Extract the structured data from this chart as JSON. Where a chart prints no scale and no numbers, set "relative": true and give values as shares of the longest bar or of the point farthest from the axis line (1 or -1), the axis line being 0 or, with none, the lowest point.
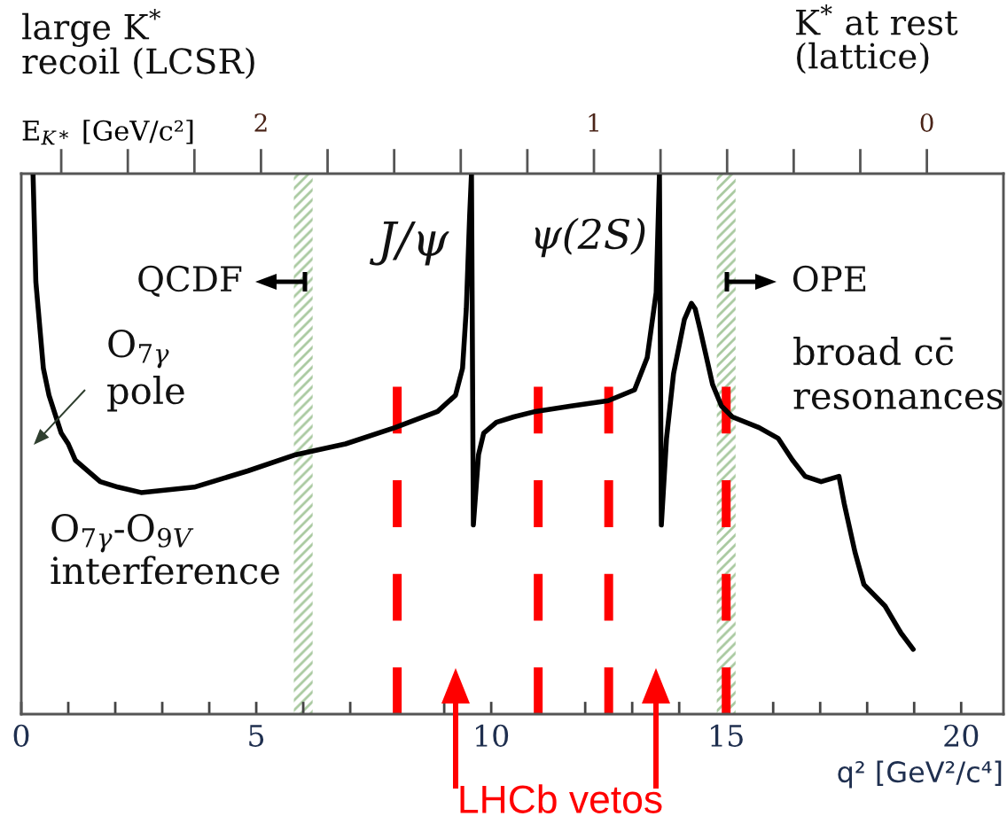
{
  "chart_data": {
    "type": "line",
    "relative": true,
    "xlabel": "q² [GeV²/c⁴]",
    "x2label": "E$_{K*}$ [GeV/c²]",
    "xlim": [
      0,
      20.9
    ],
    "xticks": [
      0,
      {
        "value": 1,
        "label": null
      },
      {
        "value": 2,
        "label": null
      },
      {
        "value": 3,
        "label": null
      },
      {
        "value": 4,
        "label": null
      },
      5,
      {
        "value": 6,
        "label": null
      },
      {
        "value": 7,
        "label": null
      },
      {
        "value": 8,
        "label": null
      },
      {
        "value": 9,
        "label": null
      },
      10,
      {
        "value": 11,
        "label": null
      },
      {
        "value": 12,
        "label": null
      },
      {
        "value": 13,
        "label": null
      },
      {
        "value": 14,
        "label": null
      },
      15,
      {
        "value": 16,
        "label": null
      },
      {
        "value": 17,
        "label": null
      },
      {
        "value": 18,
        "label": null
      },
      {
        "value": 19,
        "label": null
      },
      20
    ],
    "x2lim": [
      2.72,
      -0.23
    ],
    "x2ticks": [
      {
        "value": 2.6,
        "label": null
      },
      {
        "value": 2.4,
        "label": null
      },
      {
        "value": 2.2,
        "label": null
      },
      2,
      {
        "value": 1.8,
        "label": null
      },
      {
        "value": 1.6,
        "label": null
      },
      {
        "value": 1.4,
        "label": null
      },
      {
        "value": 1.2,
        "label": null
      },
      1,
      {
        "value": 0.8,
        "label": null
      },
      {
        "value": 0.6,
        "label": null
      },
      {
        "value": 0.4,
        "label": null
      },
      {
        "value": 0.2,
        "label": null
      },
      0
    ],
    "series": [
      {
        "color": "#000000",
        "x": [
          0.25,
          0.31,
          0.36,
          0.41,
          0.47,
          0.59,
          0.85,
          1.0,
          1.15,
          1.68,
          2.06,
          2.55,
          3.68,
          4.82,
          5.84,
          6.9,
          7.95,
          8.86,
          9.24,
          9.39,
          9.47,
          9.54,
          9.58,
          9.62,
          9.73,
          9.84,
          10.11,
          10.48,
          10.94,
          11.7,
          12.49,
          13.05,
          13.32,
          13.51,
          13.58,
          13.62,
          13.73,
          13.88,
          14.11,
          14.26,
          14.34,
          14.45,
          14.71,
          14.9,
          15.13,
          15.7,
          16.11,
          16.41,
          16.68,
          17.02,
          17.4,
          17.51,
          17.74,
          17.93,
          18.38,
          18.72,
          18.98
        ],
        "values": [
          1.0,
          0.8,
          0.75,
          0.7,
          0.64,
          0.59,
          0.52,
          0.5,
          0.47,
          0.43,
          0.42,
          0.41,
          0.42,
          0.45,
          0.48,
          0.5,
          0.53,
          0.56,
          0.59,
          0.64,
          0.75,
          0.92,
          1.0,
          0.35,
          0.48,
          0.52,
          0.54,
          0.55,
          0.56,
          0.57,
          0.58,
          0.6,
          0.66,
          0.78,
          1.0,
          0.35,
          0.51,
          0.63,
          0.73,
          0.76,
          0.75,
          0.71,
          0.61,
          0.57,
          0.55,
          0.53,
          0.51,
          0.47,
          0.44,
          0.43,
          0.44,
          0.39,
          0.3,
          0.24,
          0.2,
          0.15,
          0.12
        ]
      }
    ],
    "bands": [
      {
        "axis": "x",
        "from": 5.8,
        "to": 6.2,
        "color": "#a9c9a0"
      },
      {
        "axis": "x",
        "from": 14.8,
        "to": 15.2,
        "color": "#a9c9a0"
      }
    ],
    "ref_lines": [
      {
        "axis": "x",
        "value": 8,
        "color": "#ff0000",
        "line_style": "dashed"
      },
      {
        "axis": "x",
        "value": 11,
        "color": "#ff0000",
        "line_style": "dashed"
      },
      {
        "axis": "x",
        "value": 12.5,
        "color": "#ff0000",
        "line_style": "dashed"
      },
      {
        "axis": "x",
        "value": 15,
        "color": "#ff0000",
        "line_style": "dashed"
      }
    ],
    "annotations": [
      "large K$^{*}$\nrecoil (LCSR)",
      "K$^{*}$ at rest\n(lattice)",
      "J/ψ",
      "ψ(2S)",
      "QCDF",
      "OPE",
      "O$_{7γ}$\npole",
      "O$_{7γ}$-O$_{9V}$\ninterference",
      "broad cc̄\nresonances",
      "LHCb vetos"
    ],
    "grid": false,
    "marker": "none",
    "line_style": "solid"
  }
}
